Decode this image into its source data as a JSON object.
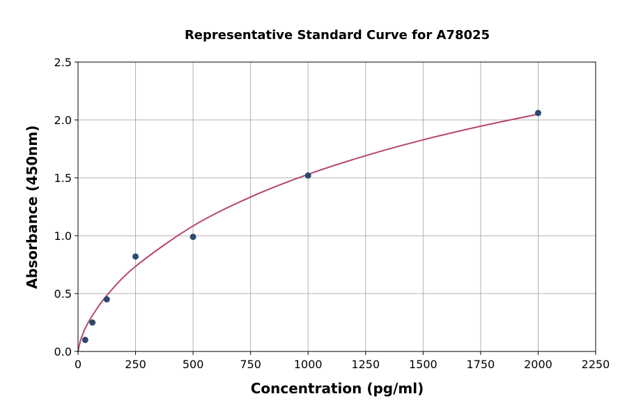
{
  "chart_data": {
    "type": "scatter",
    "title": "Representative Standard Curve for A78025",
    "xlabel": "Concentration (pg/ml)",
    "ylabel": "Absorbance (450nm)",
    "xlim": [
      0,
      2250
    ],
    "ylim": [
      0,
      2.5
    ],
    "xticks": [
      "0",
      "250",
      "500",
      "750",
      "1000",
      "1250",
      "1500",
      "1750",
      "2000",
      "2250"
    ],
    "yticks": [
      "0.0",
      "0.5",
      "1.0",
      "1.5",
      "2.0",
      "2.5"
    ],
    "grid": true,
    "points": {
      "x": [
        31.25,
        62.5,
        125,
        250,
        500,
        1000,
        2000
      ],
      "y": [
        0.1,
        0.25,
        0.45,
        0.82,
        0.99,
        1.52,
        2.06
      ]
    },
    "fit_curve": {
      "x": [
        0,
        10,
        20,
        31.25,
        62.5,
        125,
        250,
        500,
        750,
        1000,
        1250,
        1500,
        1750,
        2000
      ],
      "y": [
        0,
        0.09,
        0.145,
        0.2,
        0.31,
        0.483,
        0.735,
        1.084,
        1.334,
        1.53,
        1.691,
        1.828,
        1.946,
        2.05
      ]
    },
    "colors": {
      "points": "#2b4a6e",
      "curve": "#b5466b",
      "grid": "#b0b0b0"
    }
  }
}
